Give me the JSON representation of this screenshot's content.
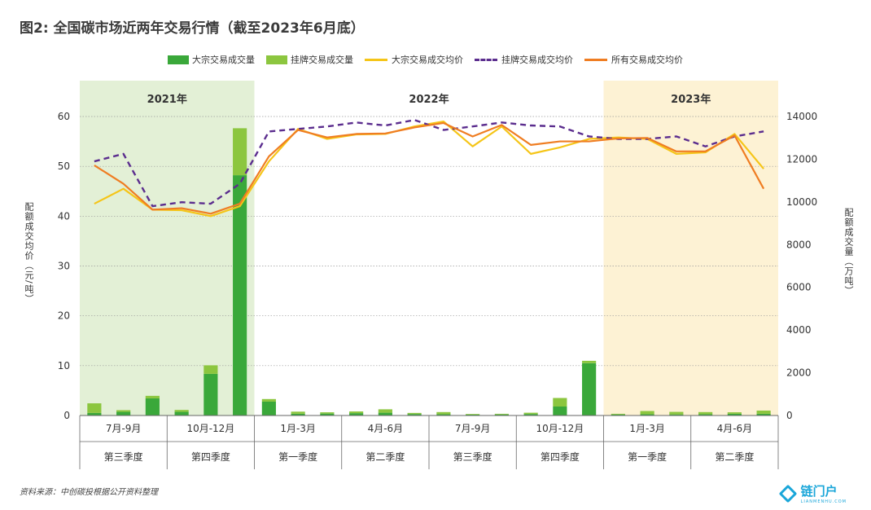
{
  "title": "图2: 全国碳市场近两年交易行情（截至2023年6月底）",
  "legend": [
    {
      "label": "大宗交易成交量",
      "kind": "bar",
      "color": "#3aa83a"
    },
    {
      "label": "挂牌交易成交量",
      "kind": "bar",
      "color": "#8cc63f"
    },
    {
      "label": "大宗交易成交均价",
      "kind": "line",
      "color": "#f5c518"
    },
    {
      "label": "挂牌交易成交均价",
      "kind": "dash",
      "color": "#5b2d8e"
    },
    {
      "label": "所有交易成交均价",
      "kind": "line",
      "color": "#ef7d22"
    }
  ],
  "source": "资料来源：中创碳投根据公开资料整理",
  "logo": {
    "text": "链门户",
    "sub": "LIANMENHU.COM"
  },
  "chart_data": {
    "type": "bar+line",
    "y_left": {
      "label": "配额成交均价（元/吨）",
      "range": [
        0,
        60
      ],
      "ticks": [
        "0",
        "10",
        "20",
        "30",
        "40",
        "50",
        "60"
      ]
    },
    "y_right": {
      "label": "配额成交量（万吨）",
      "range": [
        0,
        14000
      ],
      "ticks": [
        "0",
        "2000",
        "4000",
        "6000",
        "8000",
        "10000",
        "12000",
        "14000"
      ]
    },
    "year_bands": [
      {
        "label": "2021年",
        "from": 0,
        "to": 6,
        "color": "#e3f0d6"
      },
      {
        "label": "2022年",
        "from": 6,
        "to": 18,
        "color": "#ffffff"
      },
      {
        "label": "2023年",
        "from": 18,
        "to": 24,
        "color": "#fdf2d4"
      }
    ],
    "month_groups": [
      {
        "label": "7月-9月",
        "quarter": "第三季度"
      },
      {
        "label": "10月-12月",
        "quarter": "第四季度"
      },
      {
        "label": "1月-3月",
        "quarter": "第一季度"
      },
      {
        "label": "4月-6月",
        "quarter": "第二季度"
      },
      {
        "label": "7月-9月",
        "quarter": "第三季度"
      },
      {
        "label": "10月-12月",
        "quarter": "第四季度"
      },
      {
        "label": "1月-3月",
        "quarter": "第一季度"
      },
      {
        "label": "4月-6月",
        "quarter": "第二季度"
      }
    ],
    "series": [
      {
        "name": "大宗交易成交量",
        "type": "bar",
        "axis": "right",
        "values": [
          120,
          170,
          800,
          170,
          1950,
          11250,
          650,
          80,
          90,
          110,
          130,
          70,
          60,
          40,
          50,
          70,
          420,
          2450,
          50,
          60,
          50,
          60,
          80,
          80
        ]
      },
      {
        "name": "挂牌交易成交量",
        "type": "bar",
        "axis": "right",
        "values": [
          450,
          80,
          120,
          90,
          400,
          2200,
          120,
          100,
          60,
          80,
          160,
          50,
          100,
          30,
          30,
          60,
          400,
          110,
          30,
          150,
          120,
          100,
          70,
          150
        ]
      },
      {
        "name": "大宗交易成交均价",
        "type": "line",
        "axis": "left",
        "values": [
          42.5,
          45.5,
          41.3,
          41.2,
          40.0,
          42.0,
          51.0,
          57.5,
          55.5,
          56.4,
          56.5,
          58.0,
          59.0,
          54.0,
          58.0,
          52.5,
          53.8,
          55.5,
          55.8,
          55.5,
          52.5,
          52.8,
          56.5,
          49.5
        ]
      },
      {
        "name": "挂牌交易成交均价",
        "type": "dash",
        "axis": "left",
        "values": [
          51.0,
          52.5,
          42.0,
          42.8,
          42.5,
          46.5,
          57.0,
          57.5,
          58.0,
          58.8,
          58.2,
          59.3,
          57.3,
          58.0,
          58.8,
          58.2,
          58.0,
          56.0,
          55.5,
          55.5,
          56.0,
          54.0,
          56.0,
          57.0
        ]
      },
      {
        "name": "所有交易成交均价",
        "type": "line",
        "axis": "left",
        "values": [
          50.2,
          46.5,
          41.3,
          41.6,
          40.5,
          42.5,
          52.0,
          57.3,
          55.8,
          56.5,
          56.6,
          57.8,
          58.7,
          56.0,
          58.3,
          54.3,
          55.0,
          55.0,
          55.6,
          55.7,
          53.0,
          53.0,
          56.2,
          45.5
        ]
      }
    ]
  }
}
